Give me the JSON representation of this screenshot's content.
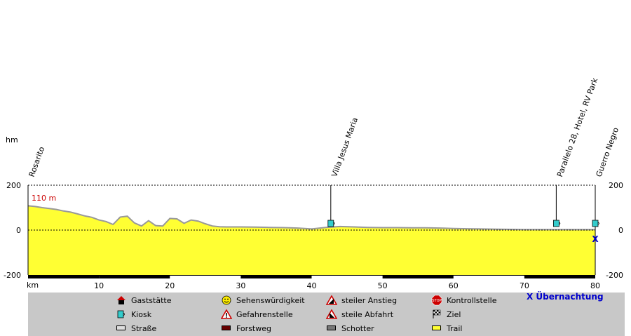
{
  "chart_data": {
    "type": "area",
    "y_unit": "hm",
    "x_unit": "km",
    "xlim": [
      0,
      80
    ],
    "ylim": [
      -200,
      200
    ],
    "x_ticks": [
      10,
      20,
      30,
      40,
      50,
      60,
      70,
      80
    ],
    "y_ticks": [
      200,
      0,
      -200
    ],
    "current_elevation_label": "110 m",
    "profile": {
      "x": [
        0,
        1,
        2,
        3,
        4,
        5,
        6,
        7,
        8,
        9,
        10,
        11,
        12,
        13,
        14,
        15,
        16,
        17,
        18,
        19,
        20,
        21,
        22,
        23,
        24,
        25,
        26,
        27,
        28,
        30,
        32,
        34,
        36,
        38,
        40,
        42,
        44,
        46,
        48,
        50,
        52,
        54,
        56,
        58,
        60,
        62,
        64,
        66,
        68,
        70,
        72,
        74,
        76,
        78,
        80
      ],
      "y": [
        108,
        105,
        100,
        96,
        92,
        85,
        80,
        72,
        63,
        57,
        45,
        38,
        25,
        58,
        62,
        32,
        18,
        42,
        20,
        18,
        52,
        50,
        30,
        45,
        40,
        28,
        18,
        15,
        14,
        14,
        13,
        12,
        11,
        9,
        5,
        12,
        16,
        14,
        12,
        11,
        11,
        10,
        10,
        9,
        7,
        6,
        5,
        4,
        3,
        2,
        2,
        2,
        2,
        2,
        2
      ]
    },
    "waypoints": [
      {
        "name": "Rosarito",
        "km": 0
      },
      {
        "name": "Villa Jesus Maria",
        "km": 42.7
      },
      {
        "name": "Parallelo 28, Hotel, RV Park",
        "km": 74.5
      },
      {
        "name": "Guerro Negro",
        "km": 80
      }
    ],
    "surface": [
      {
        "type": "Trail",
        "from": 0,
        "to": 10,
        "color": "#000000"
      },
      {
        "type": "Trail",
        "from": 10,
        "to": 20,
        "color": "#000000"
      },
      {
        "type": "Trail",
        "from": 30,
        "to": 40,
        "color": "#000000"
      },
      {
        "type": "Trail",
        "from": 50,
        "to": 60,
        "color": "#000000"
      },
      {
        "type": "Trail",
        "from": 70,
        "to": 80,
        "color": "#000000"
      }
    ],
    "colors": {
      "fill": "#ffff33",
      "edge": "#999999",
      "waypoint": "#33cccc",
      "overnight": "#0000cc"
    }
  },
  "legend": {
    "items": [
      {
        "label": "Gaststätte",
        "icon": "house-icon"
      },
      {
        "label": "Sehenswürdigkeit",
        "icon": "smiley-icon"
      },
      {
        "label": "steiler Anstieg",
        "icon": "steep-climb-icon"
      },
      {
        "label": "Kontrollstelle",
        "icon": "stop-icon"
      },
      {
        "label": "Kiosk",
        "icon": "kiosk-icon"
      },
      {
        "label": "Gefahrenstelle",
        "icon": "warning-icon"
      },
      {
        "label": "steile Abfahrt",
        "icon": "steep-descent-icon"
      },
      {
        "label": "Ziel",
        "icon": "finish-flag-icon"
      },
      {
        "label": "Straße",
        "icon": "road-swatch"
      },
      {
        "label": "Forstweg",
        "icon": "forest-road-swatch"
      },
      {
        "label": "Schotter",
        "icon": "gravel-swatch"
      },
      {
        "label": "Trail",
        "icon": "trail-swatch"
      }
    ],
    "overnight_label": "X Übernachtung",
    "overnight_marker": "X"
  }
}
